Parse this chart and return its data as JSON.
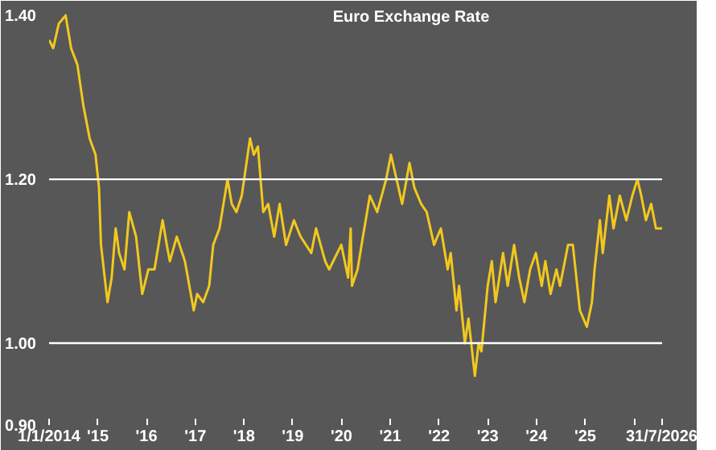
{
  "chart_data": {
    "type": "line",
    "title": "Euro Exchange Rate",
    "x": [
      "2014-01-01",
      "2014-02-01",
      "2014-03-15",
      "2014-05-05",
      "2014-06-15",
      "2014-08-01",
      "2014-09-15",
      "2014-11-01",
      "2014-12-15",
      "2015-01-10",
      "2015-01-25",
      "2015-03-15",
      "2015-04-15",
      "2015-05-15",
      "2015-06-10",
      "2015-07-20",
      "2015-08-25",
      "2015-10-15",
      "2015-11-30",
      "2016-01-15",
      "2016-03-01",
      "2016-05-01",
      "2016-06-01",
      "2016-06-24",
      "2016-08-15",
      "2016-10-15",
      "2016-12-20",
      "2017-01-15",
      "2017-03-01",
      "2017-04-15",
      "2017-05-15",
      "2017-07-01",
      "2017-08-30",
      "2017-10-01",
      "2017-11-05",
      "2017-12-15",
      "2018-02-15",
      "2018-03-15",
      "2018-04-15",
      "2018-05-25",
      "2018-07-01",
      "2018-08-15",
      "2018-09-25",
      "2018-11-12",
      "2019-01-10",
      "2019-03-01",
      "2019-05-20",
      "2019-06-25",
      "2019-09-01",
      "2019-10-01",
      "2019-12-31",
      "2020-02-20",
      "2020-03-10",
      "2020-03-20",
      "2020-05-01",
      "2020-06-10",
      "2020-08-01",
      "2020-09-25",
      "2020-12-01",
      "2021-01-06",
      "2021-03-31",
      "2021-05-25",
      "2021-06-30",
      "2021-08-20",
      "2021-10-01",
      "2021-11-25",
      "2022-01-15",
      "2022-03-07",
      "2022-03-30",
      "2022-05-12",
      "2022-06-01",
      "2022-07-14",
      "2022-08-10",
      "2022-09-27",
      "2022-10-25",
      "2022-11-15",
      "2023-01-01",
      "2023-02-01",
      "2023-03-01",
      "2023-04-26",
      "2023-05-31",
      "2023-07-18",
      "2023-08-25",
      "2023-10-03",
      "2023-11-15",
      "2023-12-28",
      "2024-02-10",
      "2024-03-08",
      "2024-04-16",
      "2024-05-30",
      "2024-06-26",
      "2024-08-25",
      "2024-09-30",
      "2024-11-22",
      "2025-01-13",
      "2025-02-20",
      "2025-03-12",
      "2025-04-21",
      "2025-05-12",
      "2025-07-01",
      "2025-08-01",
      "2025-09-17",
      "2025-11-05",
      "2025-12-20",
      "2026-01-27",
      "2026-02-25",
      "2026-04-01",
      "2026-05-10",
      "2026-06-15",
      "2026-07-31"
    ],
    "series": [
      {
        "color": "#f2c81e",
        "values": [
          1.37,
          1.36,
          1.39,
          1.4,
          1.36,
          1.34,
          1.29,
          1.25,
          1.23,
          1.19,
          1.12,
          1.05,
          1.08,
          1.14,
          1.11,
          1.09,
          1.16,
          1.13,
          1.06,
          1.09,
          1.09,
          1.15,
          1.12,
          1.1,
          1.13,
          1.1,
          1.04,
          1.06,
          1.05,
          1.07,
          1.12,
          1.14,
          1.2,
          1.17,
          1.16,
          1.18,
          1.25,
          1.23,
          1.24,
          1.16,
          1.17,
          1.13,
          1.17,
          1.12,
          1.15,
          1.13,
          1.11,
          1.14,
          1.1,
          1.09,
          1.12,
          1.08,
          1.14,
          1.07,
          1.09,
          1.13,
          1.18,
          1.16,
          1.2,
          1.23,
          1.17,
          1.22,
          1.19,
          1.17,
          1.16,
          1.12,
          1.14,
          1.09,
          1.11,
          1.04,
          1.07,
          1.0,
          1.03,
          0.96,
          1.0,
          0.99,
          1.07,
          1.1,
          1.05,
          1.11,
          1.07,
          1.12,
          1.08,
          1.05,
          1.09,
          1.11,
          1.07,
          1.1,
          1.06,
          1.09,
          1.07,
          1.12,
          1.12,
          1.04,
          1.02,
          1.05,
          1.09,
          1.15,
          1.11,
          1.18,
          1.14,
          1.18,
          1.15,
          1.18,
          1.2,
          1.18,
          1.15,
          1.17,
          1.14,
          1.14
        ]
      }
    ],
    "xlim": [
      "2014-01-01",
      "2026-07-31"
    ],
    "xticks": [
      {
        "value": "2014-01-01",
        "label": "1/1/2014"
      },
      {
        "value": "2015-01-01",
        "label": "'15"
      },
      {
        "value": "2016-01-01",
        "label": "'16"
      },
      {
        "value": "2017-01-01",
        "label": "'17"
      },
      {
        "value": "2018-01-01",
        "label": "'18"
      },
      {
        "value": "2019-01-01",
        "label": "'19"
      },
      {
        "value": "2020-01-01",
        "label": "'20"
      },
      {
        "value": "2021-01-01",
        "label": "'21"
      },
      {
        "value": "2022-01-01",
        "label": "'22"
      },
      {
        "value": "2023-01-01",
        "label": "'23"
      },
      {
        "value": "2024-01-01",
        "label": "'24"
      },
      {
        "value": "2025-01-01",
        "label": "'25"
      },
      {
        "value": "2026-01-01",
        "label": null
      },
      {
        "value": "2026-07-31",
        "label": "31/7/2026"
      }
    ],
    "ylim": [
      0.9,
      1.41
    ],
    "yticks": [
      {
        "value": 0.9,
        "label": "0.90"
      },
      {
        "value": 1.0,
        "label": "1.00"
      },
      {
        "value": 1.2,
        "label": "1.20"
      },
      {
        "value": 1.4,
        "label": "1.40"
      }
    ],
    "ref_lines": [
      {
        "axis": "y",
        "value": 1.0,
        "color": "#ffffff"
      },
      {
        "axis": "y",
        "value": 1.2,
        "color": "#ffffff"
      }
    ],
    "line_style": "solid"
  }
}
